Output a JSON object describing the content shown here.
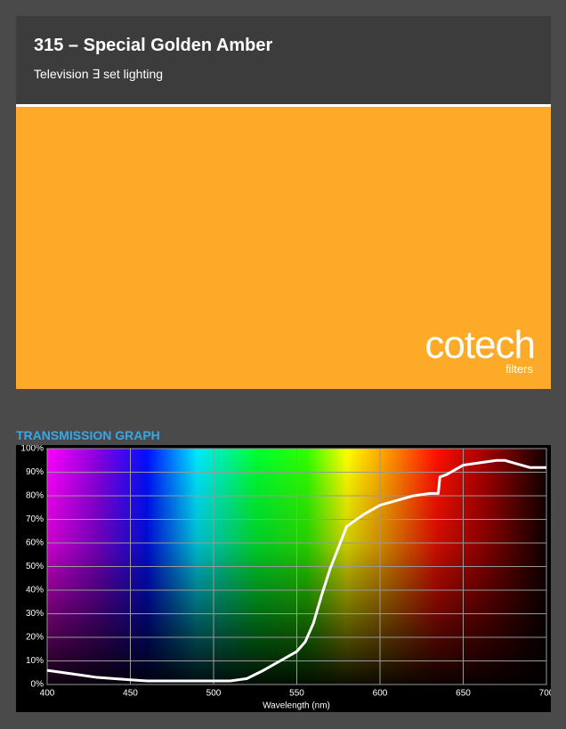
{
  "header": {
    "title": "315 – Special Golden Amber",
    "subtitle": "Television ∃ set lighting"
  },
  "swatch": {
    "color": "#fcaa28",
    "logo": "cotech",
    "logo_sub": "filters"
  },
  "graph_heading": "TRANSMISSION GRAPH",
  "chart_data": {
    "type": "line",
    "x_label": "Wavelength (nm)",
    "x": [
      400,
      410,
      420,
      430,
      440,
      450,
      460,
      470,
      480,
      490,
      500,
      510,
      520,
      530,
      540,
      550,
      555,
      560,
      565,
      570,
      575,
      580,
      590,
      600,
      610,
      620,
      630,
      635,
      636,
      640,
      650,
      660,
      670,
      675,
      680,
      690,
      700
    ],
    "values": [
      6,
      5,
      4,
      3,
      2.5,
      2,
      1.5,
      1.5,
      1.5,
      1.5,
      1.5,
      1.5,
      2.5,
      6,
      10,
      14,
      18,
      26,
      38,
      49,
      58,
      67,
      72,
      76,
      78,
      80,
      81,
      81,
      88,
      89,
      93,
      94,
      95,
      95,
      94,
      92,
      92
    ],
    "color": "#ffffff",
    "xlim": [
      400,
      700
    ],
    "xticks": [
      400,
      450,
      500,
      550,
      600,
      650,
      700
    ],
    "ylim": [
      0,
      100
    ],
    "yticks": [
      {
        "value": 0,
        "label": "0%"
      },
      {
        "value": 10,
        "label": "10%"
      },
      {
        "value": 20,
        "label": "20%"
      },
      {
        "value": 30,
        "label": "30%"
      },
      {
        "value": 40,
        "label": "40%"
      },
      {
        "value": 50,
        "label": "50%"
      },
      {
        "value": 60,
        "label": "60%"
      },
      {
        "value": 70,
        "label": "70%"
      },
      {
        "value": 80,
        "label": "80%"
      },
      {
        "value": 90,
        "label": "90%"
      },
      {
        "value": 100,
        "label": "100%"
      }
    ],
    "grid": true
  }
}
